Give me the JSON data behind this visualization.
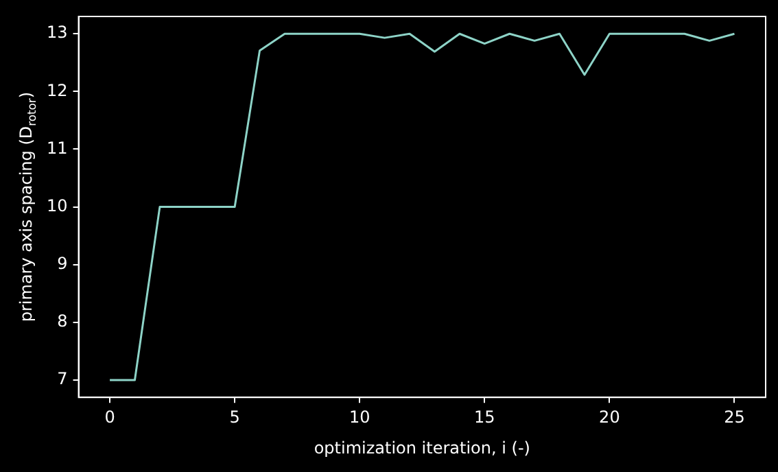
{
  "chart_data": {
    "type": "line",
    "xlabel": "optimization iteration, i (-)",
    "ylabel": "primary axis spacing (D$_{rotor}$)",
    "x": [
      0,
      1,
      2,
      3,
      4,
      5,
      6,
      7,
      8,
      9,
      10,
      11,
      12,
      13,
      14,
      15,
      16,
      17,
      18,
      19,
      20,
      21,
      22,
      23,
      24,
      25
    ],
    "series": [
      {
        "color": "#8dd3c7",
        "values": [
          7,
          7,
          10,
          10,
          10,
          10,
          12.71,
          13,
          13,
          13,
          13,
          12.93,
          13,
          12.69,
          13,
          12.83,
          13,
          12.88,
          13,
          12.29,
          13,
          13,
          13,
          13,
          12.88,
          13
        ]
      }
    ],
    "xlim": [
      -1.25,
      26.25
    ],
    "xticks": [
      0,
      5,
      10,
      15,
      20,
      25
    ],
    "ylim": [
      6.7,
      13.3
    ],
    "yticks": [
      7,
      8,
      9,
      10,
      11,
      12,
      13
    ],
    "grid": false,
    "legend": false,
    "marker": "none",
    "line_style": "solid"
  }
}
